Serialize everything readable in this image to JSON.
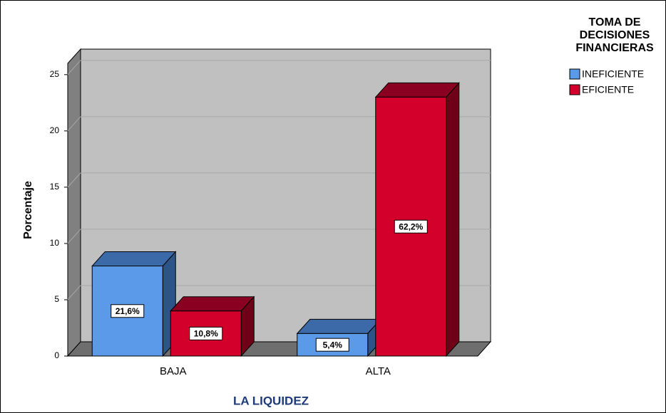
{
  "chart_data": {
    "type": "bar3d",
    "y_axis_label": "Porcentaje",
    "x_axis_label": "LA LIQUIDEZ",
    "legend_title": [
      "TOMA DE",
      "DECISIONES",
      "FINANCIERAS"
    ],
    "legend_position": "top-right",
    "categories": [
      "BAJA",
      "ALTA"
    ],
    "series": [
      {
        "name": "INEFICIENTE",
        "color": "#5b9ae8",
        "top_color": "#3c6aa8",
        "side_color": "#2d5487",
        "values": [
          8,
          2
        ],
        "value_labels": [
          "21,6%",
          "5,4%"
        ]
      },
      {
        "name": "EFICIENTE",
        "color": "#d2002a",
        "top_color": "#8a0020",
        "side_color": "#6e0018",
        "values": [
          4,
          23
        ],
        "value_labels": [
          "10,8%",
          "62,2%"
        ]
      }
    ],
    "ylim": [
      0,
      26
    ],
    "yticks": [
      0,
      5,
      10,
      15,
      20,
      25
    ],
    "grid": true
  }
}
